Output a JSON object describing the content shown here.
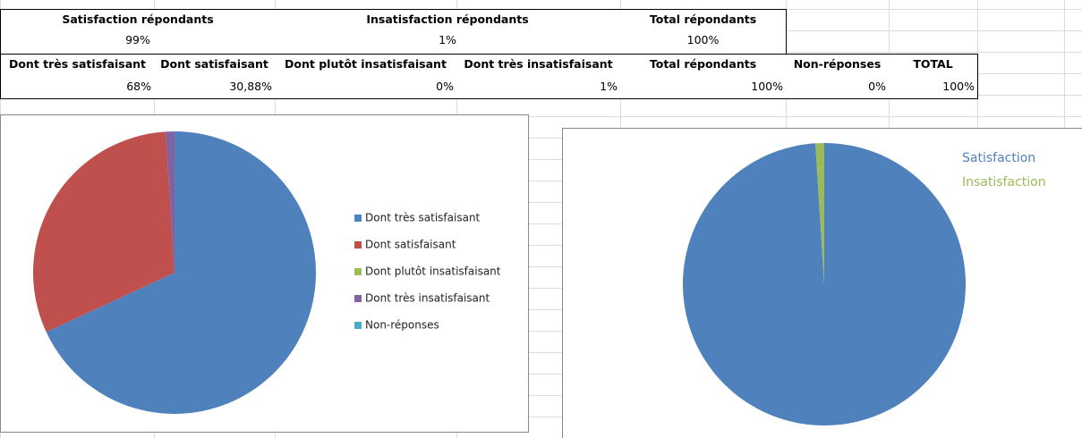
{
  "table": {
    "rows": [
      [
        "Satisfaction répondants",
        "Insatisfaction répondants",
        "Total répondants"
      ],
      [
        "99%",
        "1%",
        "100%"
      ],
      [
        "Dont très satisfaisant",
        "Dont satisfaisant",
        "Dont plutôt insatisfaisant",
        "Dont très insatisfaisant",
        "Total répondants",
        "Non-réponses",
        "TOTAL"
      ],
      [
        "68%",
        "30,88%",
        "0%",
        "1%",
        "100%",
        "0%",
        "100%"
      ]
    ]
  },
  "chart_data": [
    {
      "type": "pie",
      "categories": [
        "Dont très satisfaisant",
        "Dont satisfaisant",
        "Dont plutôt insatisfaisant",
        "Dont très insatisfaisant",
        "Non-réponses"
      ],
      "values": [
        68,
        30.88,
        0,
        1,
        0
      ],
      "colors": [
        "#4f81bd",
        "#c0504d",
        "#9bbb59",
        "#8064a2",
        "#4bacc6"
      ],
      "legend": "right"
    },
    {
      "type": "pie",
      "categories": [
        "Satisfaction",
        "Insatisfaction"
      ],
      "values": [
        99,
        1
      ],
      "colors": [
        "#4f81bd",
        "#9bbb59"
      ],
      "legend": "top-right"
    }
  ]
}
